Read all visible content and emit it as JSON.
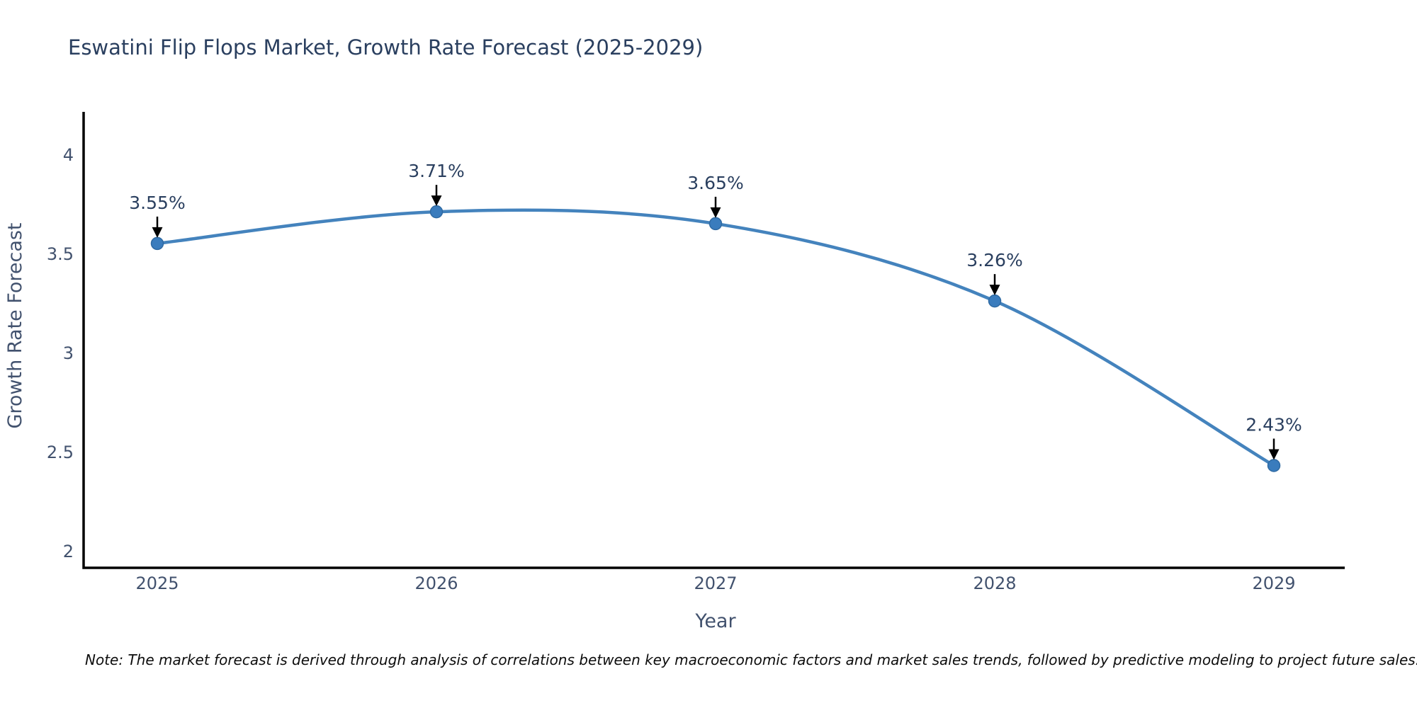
{
  "title": "Eswatini Flip Flops Market, Growth Rate Forecast (2025-2029)",
  "note": "Note: The market forecast is derived through analysis of correlations between key macroeconomic factors and market sales trends, followed by predictive modeling to project future sales.",
  "chart_data": {
    "type": "line",
    "title": "Eswatini Flip Flops Market, Growth Rate Forecast (2025-2029)",
    "x": [
      "2025",
      "2026",
      "2027",
      "2028",
      "2029"
    ],
    "series": [
      {
        "name": "Growth Rate Forecast",
        "values": [
          3.55,
          3.71,
          3.65,
          3.26,
          2.43
        ],
        "point_labels": [
          "3.55%",
          "3.71%",
          "3.65%",
          "3.26%",
          "2.43%"
        ]
      }
    ],
    "xlabel": "Year",
    "ylabel": "Growth Rate Forecast",
    "yticks": [
      4,
      3.5,
      3,
      2.5,
      2
    ],
    "ylim": [
      1.914,
      4.214
    ],
    "grid": false,
    "legend_position": "none",
    "line_shape": "spline",
    "colors": {
      "line": "#4483bd",
      "marker_fill": "#3a7cbd",
      "marker_stroke": "#2f6aa3",
      "axis_line": "#000000",
      "title_text": "#2a3f5f",
      "tick_text": "#42526e",
      "annotation_text": "#2a3f5f",
      "arrow": "#000000",
      "note_text": "#0d0d0d"
    }
  }
}
